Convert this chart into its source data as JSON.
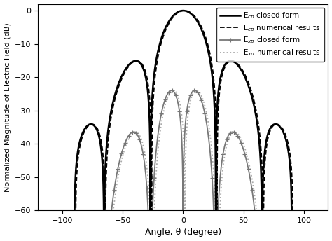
{
  "xlabel": "Angle, θ (degree)",
  "ylabel": "Normalized Magnitude of Electric Field (dB)",
  "xlim": [
    -120,
    120
  ],
  "ylim": [
    -60,
    2
  ],
  "yticks": [
    0,
    -10,
    -20,
    -30,
    -40,
    -50,
    -60
  ],
  "xticks": [
    -100,
    -50,
    0,
    50,
    100
  ],
  "legend": [
    {
      "label": "E$_{cp}$ closed form",
      "color": "#000000",
      "linestyle": "solid",
      "lw": 1.8,
      "marker": "none",
      "gray": false
    },
    {
      "label": "E$_{cp}$ numerical results",
      "color": "#000000",
      "linestyle": "dashed",
      "lw": 1.3,
      "marker": "none",
      "gray": false
    },
    {
      "label": "E$_{xp}$ closed form",
      "color": "#777777",
      "linestyle": "solid",
      "lw": 1.3,
      "marker": "+",
      "gray": true
    },
    {
      "label": "E$_{xp}$ numerical results",
      "color": "#aaaaaa",
      "linestyle": "dotted",
      "lw": 1.3,
      "marker": "none",
      "gray": true
    }
  ],
  "background_color": "#ffffff"
}
